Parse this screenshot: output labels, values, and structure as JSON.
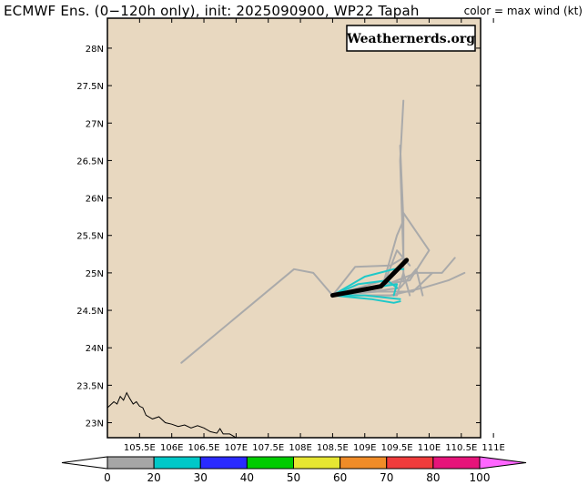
{
  "header": {
    "title": "ECMWF Ens. (0−120h only), init: 2025090900, WP22 Tapah",
    "color_note": "color = max wind (kt)"
  },
  "watermark": "Weathernerds.org",
  "axes": {
    "lat_labels": [
      "28N",
      "27.5N",
      "27N",
      "26.5N",
      "26N",
      "25.5N",
      "25N",
      "24.5N",
      "24N",
      "23.5N",
      "23N"
    ],
    "lat_values": [
      28,
      27.5,
      27,
      26.5,
      26,
      25.5,
      25,
      24.5,
      24,
      23.5,
      23
    ],
    "lon_labels": [
      "105.5E",
      "106E",
      "106.5E",
      "107E",
      "107.5E",
      "108E",
      "108.5E",
      "109E",
      "109.5E",
      "110E",
      "110.5E",
      "111E"
    ],
    "lon_values": [
      105.5,
      106,
      106.5,
      107,
      107.5,
      108,
      108.5,
      109,
      109.5,
      110,
      110.5,
      111
    ],
    "lon_range": [
      105.0,
      110.8
    ],
    "lat_range": [
      22.8,
      28.4
    ]
  },
  "colors": {
    "land": "#e8d8c0",
    "track_gray": "#aaaaaa",
    "track_cyan": "#1ec8c8",
    "mean_track": "#000000",
    "coast": "#000000"
  },
  "colorbar": {
    "labels": [
      "0",
      "20",
      "30",
      "40",
      "50",
      "60",
      "70",
      "80",
      "100"
    ],
    "bins": [
      {
        "color": "#a6a6a6"
      },
      {
        "color": "#00c8c8"
      },
      {
        "color": "#2a2aff"
      },
      {
        "color": "#00cc00"
      },
      {
        "color": "#e6e632"
      },
      {
        "color": "#f08c28"
      },
      {
        "color": "#f03c3c"
      },
      {
        "color": "#e6147a"
      }
    ],
    "left_cap": "#ffffff",
    "right_cap": "#ff66ff"
  },
  "tracks": {
    "mean": [
      [
        108.5,
        24.7
      ],
      [
        109.25,
        24.82
      ],
      [
        109.65,
        25.17
      ]
    ],
    "gray": [
      [
        [
          108.5,
          24.7
        ],
        [
          108.85,
          25.08
        ],
        [
          109.4,
          25.1
        ],
        [
          109.6,
          25.2
        ],
        [
          109.55,
          26.5
        ],
        [
          109.6,
          27.3
        ]
      ],
      [
        [
          108.5,
          24.7
        ],
        [
          109.3,
          24.9
        ],
        [
          109.5,
          25.5
        ],
        [
          109.6,
          25.7
        ],
        [
          109.55,
          26.7
        ]
      ],
      [
        [
          108.5,
          24.7
        ],
        [
          109.3,
          24.85
        ],
        [
          109.7,
          24.9
        ],
        [
          110.0,
          25.3
        ],
        [
          109.6,
          25.8
        ],
        [
          109.6,
          24.9
        ]
      ],
      [
        [
          108.5,
          24.7
        ],
        [
          109.2,
          24.8
        ],
        [
          109.8,
          25.0
        ],
        [
          110.2,
          25.0
        ],
        [
          110.4,
          25.2
        ]
      ],
      [
        [
          108.5,
          24.7
        ],
        [
          109.4,
          24.7
        ],
        [
          109.9,
          24.8
        ],
        [
          110.3,
          24.9
        ],
        [
          110.55,
          25.0
        ]
      ],
      [
        [
          108.5,
          24.7
        ],
        [
          109.5,
          24.7
        ],
        [
          109.6,
          25.0
        ],
        [
          109.7,
          24.7
        ]
      ],
      [
        [
          108.5,
          24.7
        ],
        [
          109.1,
          24.75
        ],
        [
          109.55,
          24.8
        ],
        [
          109.8,
          25.05
        ],
        [
          109.9,
          24.7
        ]
      ],
      [
        [
          108.5,
          24.7
        ],
        [
          109.3,
          24.85
        ],
        [
          109.5,
          25.3
        ],
        [
          109.7,
          25.1
        ]
      ],
      [
        [
          108.5,
          24.7
        ],
        [
          108.2,
          25.0
        ],
        [
          107.9,
          25.05
        ],
        [
          106.15,
          23.8
        ]
      ],
      [
        [
          108.5,
          24.7
        ],
        [
          109.2,
          24.75
        ],
        [
          109.75,
          24.75
        ],
        [
          110.05,
          25.0
        ]
      ]
    ],
    "cyan": [
      [
        [
          108.5,
          24.7
        ],
        [
          109.0,
          24.95
        ],
        [
          109.45,
          25.05
        ],
        [
          109.6,
          25.05
        ]
      ],
      [
        [
          108.5,
          24.7
        ],
        [
          109.1,
          24.8
        ],
        [
          109.5,
          24.85
        ],
        [
          109.45,
          24.7
        ]
      ],
      [
        [
          108.5,
          24.7
        ],
        [
          109.1,
          24.65
        ],
        [
          109.45,
          24.6
        ],
        [
          109.55,
          24.62
        ]
      ],
      [
        [
          108.5,
          24.7
        ],
        [
          109.0,
          24.7
        ],
        [
          109.55,
          24.65
        ]
      ],
      [
        [
          108.5,
          24.7
        ],
        [
          108.9,
          24.85
        ],
        [
          109.35,
          24.9
        ],
        [
          109.5,
          24.8
        ]
      ]
    ]
  },
  "coastline": [
    [
      105.0,
      23.2
    ],
    [
      105.1,
      23.28
    ],
    [
      105.15,
      23.25
    ],
    [
      105.2,
      23.35
    ],
    [
      105.25,
      23.3
    ],
    [
      105.3,
      23.4
    ],
    [
      105.35,
      23.32
    ],
    [
      105.4,
      23.25
    ],
    [
      105.45,
      23.28
    ],
    [
      105.5,
      23.22
    ],
    [
      105.55,
      23.2
    ],
    [
      105.6,
      23.1
    ],
    [
      105.7,
      23.05
    ],
    [
      105.8,
      23.08
    ],
    [
      105.9,
      23.0
    ],
    [
      106.0,
      22.98
    ],
    [
      106.1,
      22.95
    ],
    [
      106.2,
      22.97
    ],
    [
      106.3,
      22.93
    ],
    [
      106.4,
      22.96
    ],
    [
      106.5,
      22.93
    ],
    [
      106.6,
      22.88
    ],
    [
      106.7,
      22.86
    ],
    [
      106.75,
      22.92
    ],
    [
      106.8,
      22.85
    ],
    [
      106.9,
      22.85
    ],
    [
      107.0,
      22.8
    ]
  ]
}
